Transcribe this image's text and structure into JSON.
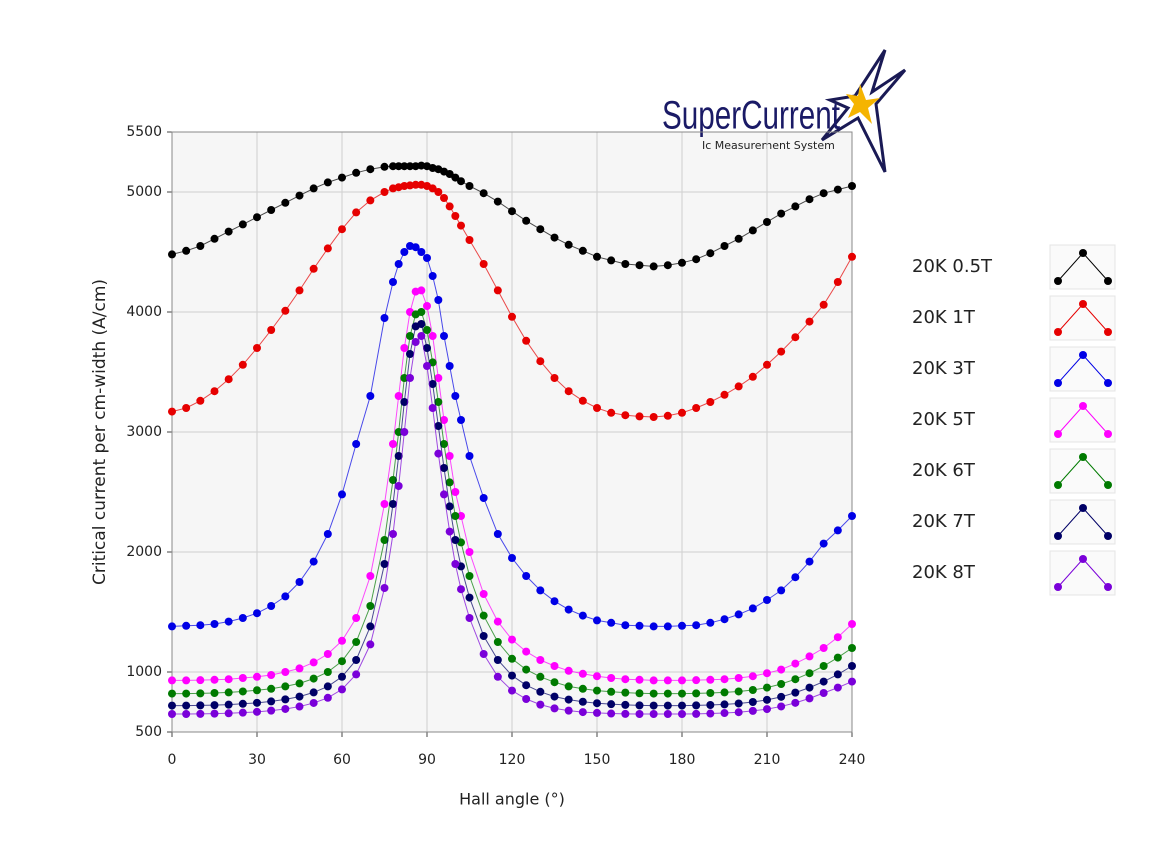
{
  "logo": {
    "name": "SuperCurrent",
    "tagline": "Ic Measurement System"
  },
  "chart_data": {
    "type": "line",
    "xlabel": "Hall angle (°)",
    "ylabel": "Critical current per cm-width (A/cm)",
    "xlim": [
      0,
      240
    ],
    "xticks": [
      0,
      30,
      60,
      90,
      120,
      150,
      180,
      210,
      240
    ],
    "ylim": [
      500,
      5500
    ],
    "yticks": [
      500,
      1000,
      2000,
      3000,
      4000,
      5000,
      5500
    ],
    "grid": true,
    "legend": "right",
    "x": [
      0,
      5,
      10,
      15,
      20,
      25,
      30,
      35,
      40,
      45,
      50,
      55,
      60,
      65,
      70,
      75,
      78,
      80,
      82,
      84,
      86,
      88,
      90,
      92,
      94,
      96,
      98,
      100,
      102,
      105,
      110,
      115,
      120,
      125,
      130,
      135,
      140,
      145,
      150,
      155,
      160,
      165,
      170,
      175,
      180,
      185,
      190,
      195,
      200,
      205,
      210,
      215,
      220,
      225,
      230,
      235,
      240
    ],
    "series": [
      {
        "name": "20K 0.5T",
        "color": "#000000",
        "values": [
          4480,
          4510,
          4550,
          4610,
          4670,
          4730,
          4790,
          4850,
          4910,
          4970,
          5030,
          5080,
          5120,
          5160,
          5190,
          5210,
          5215,
          5215,
          5215,
          5215,
          5215,
          5220,
          5215,
          5200,
          5190,
          5170,
          5150,
          5120,
          5090,
          5050,
          4990,
          4920,
          4840,
          4760,
          4690,
          4620,
          4560,
          4510,
          4460,
          4430,
          4400,
          4390,
          4380,
          4390,
          4410,
          4440,
          4490,
          4550,
          4610,
          4680,
          4750,
          4820,
          4880,
          4940,
          4990,
          5020,
          5050
        ]
      },
      {
        "name": "20K 1T",
        "color": "#e60000",
        "values": [
          3170,
          3200,
          3260,
          3340,
          3440,
          3560,
          3700,
          3850,
          4010,
          4180,
          4360,
          4530,
          4690,
          4830,
          4930,
          5000,
          5030,
          5040,
          5050,
          5055,
          5060,
          5060,
          5050,
          5030,
          5000,
          4950,
          4880,
          4800,
          4720,
          4600,
          4400,
          4180,
          3960,
          3760,
          3590,
          3450,
          3340,
          3260,
          3200,
          3160,
          3140,
          3130,
          3125,
          3135,
          3160,
          3200,
          3250,
          3310,
          3380,
          3460,
          3560,
          3670,
          3790,
          3920,
          4060,
          4250,
          4460
        ]
      },
      {
        "name": "20K 3T",
        "color": "#0000e6",
        "values": [
          1380,
          1385,
          1390,
          1400,
          1420,
          1450,
          1490,
          1550,
          1630,
          1750,
          1920,
          2150,
          2480,
          2900,
          3300,
          3950,
          4250,
          4400,
          4500,
          4550,
          4540,
          4500,
          4450,
          4300,
          4100,
          3800,
          3550,
          3300,
          3100,
          2800,
          2450,
          2150,
          1950,
          1800,
          1680,
          1590,
          1520,
          1470,
          1430,
          1410,
          1390,
          1385,
          1380,
          1380,
          1385,
          1390,
          1410,
          1440,
          1480,
          1530,
          1600,
          1680,
          1790,
          1920,
          2070,
          2180,
          2300
        ]
      },
      {
        "name": "20K 5T",
        "color": "#ff00ff",
        "values": [
          930,
          930,
          932,
          935,
          940,
          950,
          960,
          975,
          1000,
          1030,
          1080,
          1150,
          1260,
          1450,
          1800,
          2400,
          2900,
          3300,
          3700,
          4000,
          4170,
          4180,
          4050,
          3800,
          3450,
          3100,
          2800,
          2500,
          2300,
          2000,
          1650,
          1420,
          1270,
          1170,
          1100,
          1050,
          1010,
          985,
          965,
          950,
          940,
          935,
          930,
          930,
          930,
          932,
          935,
          940,
          950,
          965,
          990,
          1020,
          1070,
          1130,
          1200,
          1290,
          1400
        ]
      },
      {
        "name": "20K 6T",
        "color": "#007a00",
        "values": [
          820,
          820,
          822,
          825,
          830,
          838,
          848,
          860,
          880,
          905,
          945,
          1000,
          1090,
          1250,
          1550,
          2100,
          2600,
          3000,
          3450,
          3800,
          3980,
          4000,
          3850,
          3580,
          3250,
          2900,
          2580,
          2300,
          2080,
          1800,
          1470,
          1250,
          1110,
          1020,
          960,
          915,
          880,
          860,
          845,
          835,
          828,
          823,
          820,
          820,
          820,
          822,
          825,
          830,
          838,
          850,
          870,
          900,
          940,
          990,
          1050,
          1120,
          1200
        ]
      },
      {
        "name": "20K 7T",
        "color": "#000066",
        "values": [
          720,
          720,
          722,
          724,
          728,
          735,
          743,
          755,
          772,
          795,
          830,
          880,
          960,
          1100,
          1380,
          1900,
          2400,
          2800,
          3250,
          3650,
          3880,
          3900,
          3700,
          3400,
          3050,
          2700,
          2380,
          2100,
          1880,
          1620,
          1300,
          1100,
          970,
          890,
          835,
          795,
          770,
          752,
          740,
          732,
          726,
          722,
          720,
          720,
          720,
          722,
          725,
          730,
          738,
          750,
          768,
          793,
          828,
          870,
          920,
          980,
          1050
        ]
      },
      {
        "name": "20K 8T",
        "color": "#7a00d9",
        "values": [
          650,
          650,
          651,
          653,
          656,
          661,
          668,
          678,
          692,
          712,
          742,
          785,
          855,
          980,
          1230,
          1700,
          2150,
          2550,
          3000,
          3450,
          3750,
          3800,
          3550,
          3200,
          2820,
          2480,
          2170,
          1900,
          1690,
          1450,
          1150,
          960,
          845,
          775,
          728,
          697,
          678,
          666,
          659,
          654,
          651,
          650,
          650,
          650,
          650,
          651,
          654,
          658,
          665,
          676,
          691,
          713,
          743,
          780,
          825,
          870,
          920
        ]
      }
    ]
  }
}
